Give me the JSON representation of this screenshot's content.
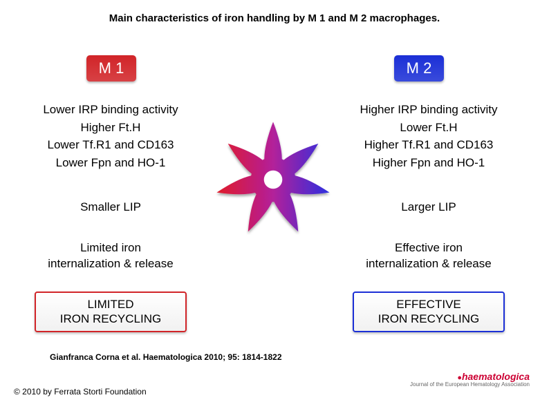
{
  "title": "Main characteristics of iron handling by M 1 and M 2 macrophages.",
  "m1": {
    "badge": "M 1",
    "badge_bg": "#d12428",
    "items": [
      "Lower IRP binding activity",
      "Higher Ft.H",
      "Lower Tf.R1 and CD163",
      "Lower Fpn and HO-1"
    ],
    "lip": "Smaller LIP",
    "summary_l1": "Limited iron",
    "summary_l2": "internalization & release",
    "recycle_l1": "LIMITED",
    "recycle_l2": "IRON RECYCLING",
    "recycle_border": "#d12428"
  },
  "m2": {
    "badge": "M 2",
    "badge_bg": "#1b2fd6",
    "items": [
      "Higher IRP binding activity",
      "Lower Ft.H",
      "Higher Tf.R1 and CD163",
      "Higher Fpn and HO-1"
    ],
    "lip": "Larger LIP",
    "summary_l1": "Effective iron",
    "summary_l2": "internalization & release",
    "recycle_l1": "EFFECTIVE",
    "recycle_l2": "IRON RECYCLING",
    "recycle_border": "#1b2fd6"
  },
  "cell": {
    "gradient_left": "#e01a2a",
    "gradient_mid": "#b3209a",
    "gradient_right": "#2d2fe0",
    "nucleus_fill": "#ffffff",
    "num_arms": 7
  },
  "citation": "Gianfranca Corna et al. Haematologica 2010; 95: 1814-1822",
  "copyright": "© 2010 by Ferrata Storti Foundation",
  "journal": {
    "name": "haematologica",
    "tagline": "Journal of the European Hematology Association"
  }
}
